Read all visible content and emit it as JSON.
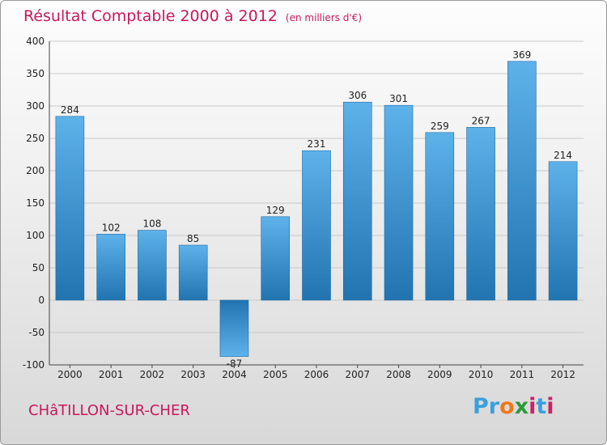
{
  "header": {
    "title": "Résultat Comptable 2000 à 2012",
    "subtitle": "(en milliers d'€)"
  },
  "footer": {
    "town": "CHâTILLON-SUR-CHER",
    "logo_letters": [
      "P",
      "r",
      "o",
      "x",
      "i",
      "t",
      "i"
    ],
    "logo_colors": [
      "#3aa0dc",
      "#3aa0dc",
      "#f07818",
      "#2c9a3c",
      "#d01e66",
      "#3aa0dc",
      "#d01e66"
    ]
  },
  "colors": {
    "bar_light": "#5eb2ea",
    "bar_dark": "#2174b0",
    "title": "#c8185c"
  },
  "chart_data": {
    "type": "bar",
    "title": "Résultat Comptable 2000 à 2012",
    "subtitle": "(en milliers d'€)",
    "xlabel": "",
    "ylabel": "",
    "categories": [
      "2000",
      "2001",
      "2002",
      "2003",
      "2004",
      "2005",
      "2006",
      "2007",
      "2008",
      "2009",
      "2010",
      "2011",
      "2012"
    ],
    "values": [
      284,
      102,
      108,
      85,
      -87,
      129,
      231,
      306,
      301,
      259,
      267,
      369,
      214
    ],
    "data_labels": [
      "284",
      "102",
      "108",
      "85",
      "-87",
      "129",
      "231",
      "306",
      "301",
      "259",
      "267",
      "369",
      "214"
    ],
    "ylim": [
      -100,
      400
    ],
    "yticks": [
      -100,
      -50,
      0,
      50,
      100,
      150,
      200,
      250,
      300,
      350,
      400
    ],
    "grid": true
  }
}
